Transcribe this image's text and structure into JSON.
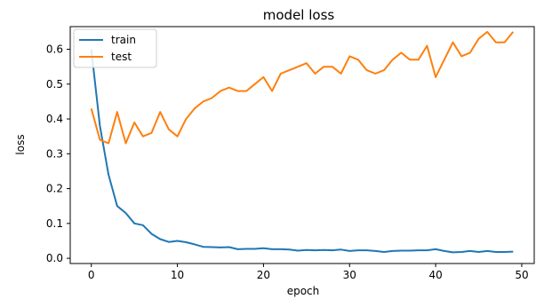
{
  "chart_data": {
    "type": "line",
    "title": "model loss",
    "xlabel": "epoch",
    "ylabel": "loss",
    "xlim": [
      -2.45,
      51.45
    ],
    "ylim": [
      -0.015,
      0.665
    ],
    "xticks": [
      0,
      10,
      20,
      30,
      40,
      50
    ],
    "yticks": [
      0.0,
      0.1,
      0.2,
      0.3,
      0.4,
      0.5,
      0.6
    ],
    "xtick_labels": [
      "0",
      "10",
      "20",
      "30",
      "40",
      "50"
    ],
    "ytick_labels": [
      "0.0",
      "0.1",
      "0.2",
      "0.3",
      "0.4",
      "0.5",
      "0.6"
    ],
    "grid": false,
    "legend_position": "top-left",
    "x": [
      0,
      1,
      2,
      3,
      4,
      5,
      6,
      7,
      8,
      9,
      10,
      11,
      12,
      13,
      14,
      15,
      16,
      17,
      18,
      19,
      20,
      21,
      22,
      23,
      24,
      25,
      26,
      27,
      28,
      29,
      30,
      31,
      32,
      33,
      34,
      35,
      36,
      37,
      38,
      39,
      40,
      41,
      42,
      43,
      44,
      45,
      46,
      47,
      48,
      49
    ],
    "series": [
      {
        "name": "train",
        "color": "#1f77b4",
        "values": [
          0.6,
          0.38,
          0.24,
          0.15,
          0.13,
          0.1,
          0.095,
          0.07,
          0.055,
          0.047,
          0.05,
          0.046,
          0.04,
          0.033,
          0.032,
          0.031,
          0.032,
          0.026,
          0.027,
          0.027,
          0.029,
          0.026,
          0.026,
          0.025,
          0.022,
          0.024,
          0.023,
          0.024,
          0.023,
          0.025,
          0.021,
          0.023,
          0.023,
          0.021,
          0.018,
          0.021,
          0.022,
          0.022,
          0.023,
          0.023,
          0.026,
          0.021,
          0.017,
          0.018,
          0.021,
          0.018,
          0.021,
          0.018,
          0.018,
          0.019
        ]
      },
      {
        "name": "test",
        "color": "#ff7f0e",
        "values": [
          0.43,
          0.34,
          0.33,
          0.42,
          0.33,
          0.39,
          0.35,
          0.36,
          0.42,
          0.37,
          0.35,
          0.4,
          0.43,
          0.45,
          0.46,
          0.48,
          0.49,
          0.48,
          0.48,
          0.5,
          0.52,
          0.48,
          0.53,
          0.54,
          0.55,
          0.56,
          0.53,
          0.55,
          0.55,
          0.53,
          0.58,
          0.57,
          0.54,
          0.53,
          0.54,
          0.57,
          0.59,
          0.57,
          0.57,
          0.61,
          0.52,
          0.57,
          0.62,
          0.58,
          0.59,
          0.63,
          0.65,
          0.62,
          0.62,
          0.65
        ]
      }
    ]
  }
}
